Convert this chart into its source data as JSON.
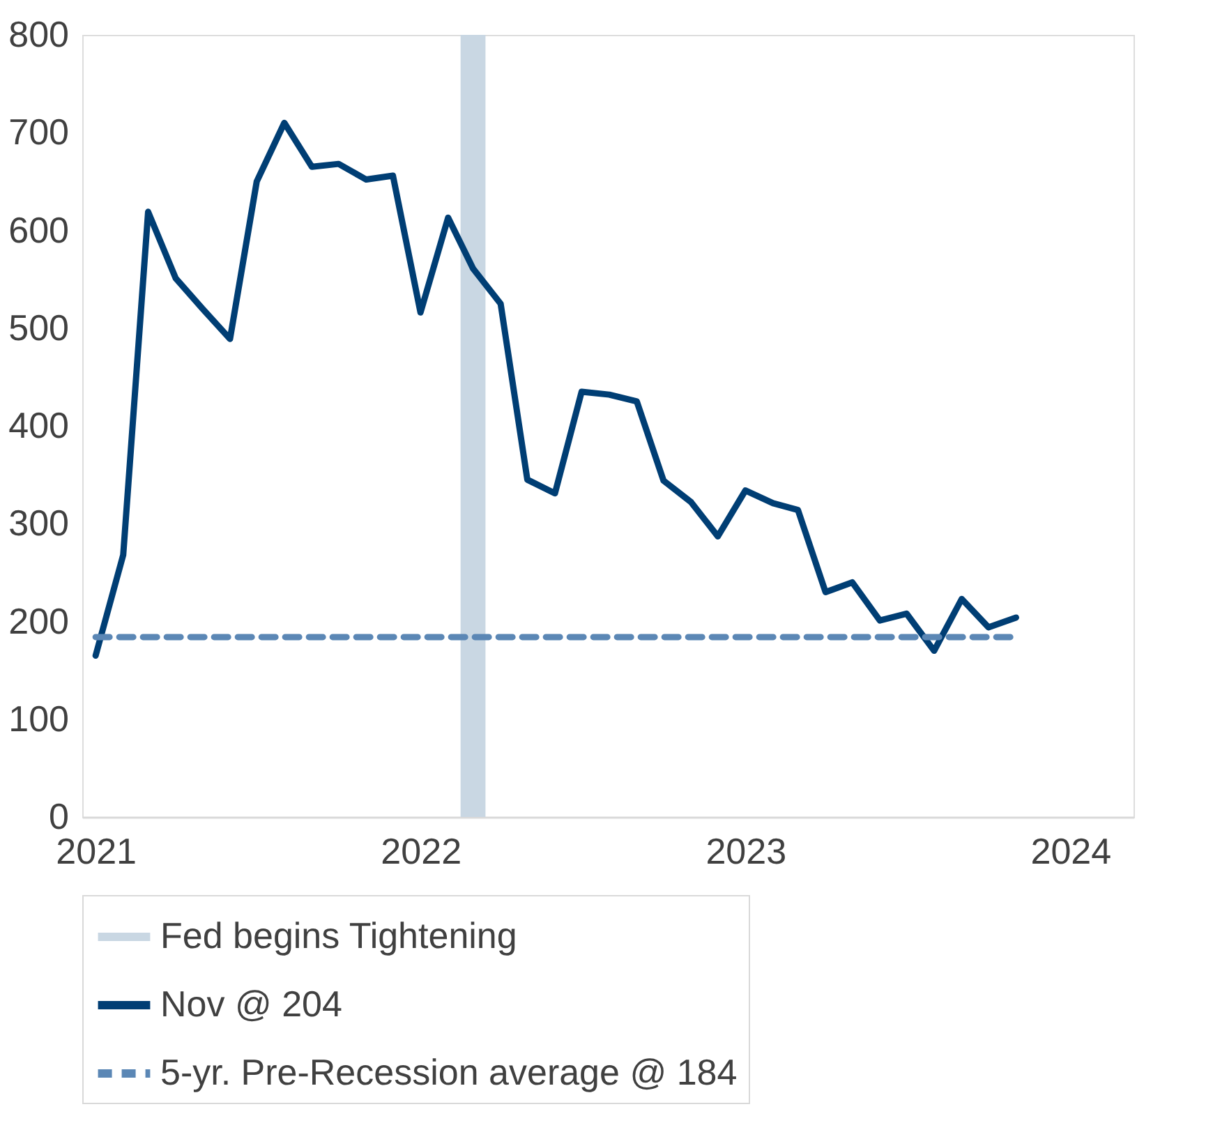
{
  "chart_data": {
    "type": "line",
    "x": [
      "2021-01",
      "2021-02",
      "2021-03",
      "2021-04",
      "2021-05",
      "2021-06",
      "2021-07",
      "2021-08",
      "2021-09",
      "2021-10",
      "2021-11",
      "2021-12",
      "2022-01",
      "2022-02",
      "2022-03",
      "2022-04",
      "2022-05",
      "2022-06",
      "2022-07",
      "2022-08",
      "2022-09",
      "2022-10",
      "2022-11",
      "2022-12",
      "2023-01",
      "2023-02",
      "2023-03",
      "2023-04",
      "2023-05",
      "2023-06",
      "2023-07",
      "2023-08",
      "2023-09",
      "2023-10",
      "2023-11"
    ],
    "series": [
      {
        "name": "Nov @ 204",
        "color": "#003e74",
        "values": [
          165,
          268,
          619,
          551,
          520,
          489,
          650,
          710,
          665,
          668,
          652,
          656,
          516,
          613,
          561,
          525,
          345,
          331,
          435,
          432,
          425,
          344,
          322,
          287,
          334,
          321,
          314,
          230,
          240,
          201,
          208,
          170,
          223,
          194,
          204
        ]
      }
    ],
    "xlim": [
      "2020-12-17",
      "2024-03-12"
    ],
    "xticks": [
      {
        "value": "2021-01-01",
        "label": "2021"
      },
      {
        "value": "2022-01-01",
        "label": "2022"
      },
      {
        "value": "2023-01-01",
        "label": "2023"
      },
      {
        "value": "2024-01-01",
        "label": "2024"
      }
    ],
    "ylim": [
      0,
      800
    ],
    "yticks": [
      0,
      100,
      200,
      300,
      400,
      500,
      600,
      700,
      800
    ],
    "bands": [
      {
        "axis": "x",
        "from": "2022-02-15",
        "to": "2022-03-15",
        "label": "Fed begins Tightening",
        "color": "#c9d7e3"
      }
    ],
    "ref_lines": [
      {
        "axis": "y",
        "value": 184,
        "label": "5-yr. Pre-Recession average @ 184",
        "color": "#5b87b5",
        "line_style": "dashed"
      }
    ],
    "legend": "bottom",
    "grid": false,
    "line_style": "solid"
  }
}
